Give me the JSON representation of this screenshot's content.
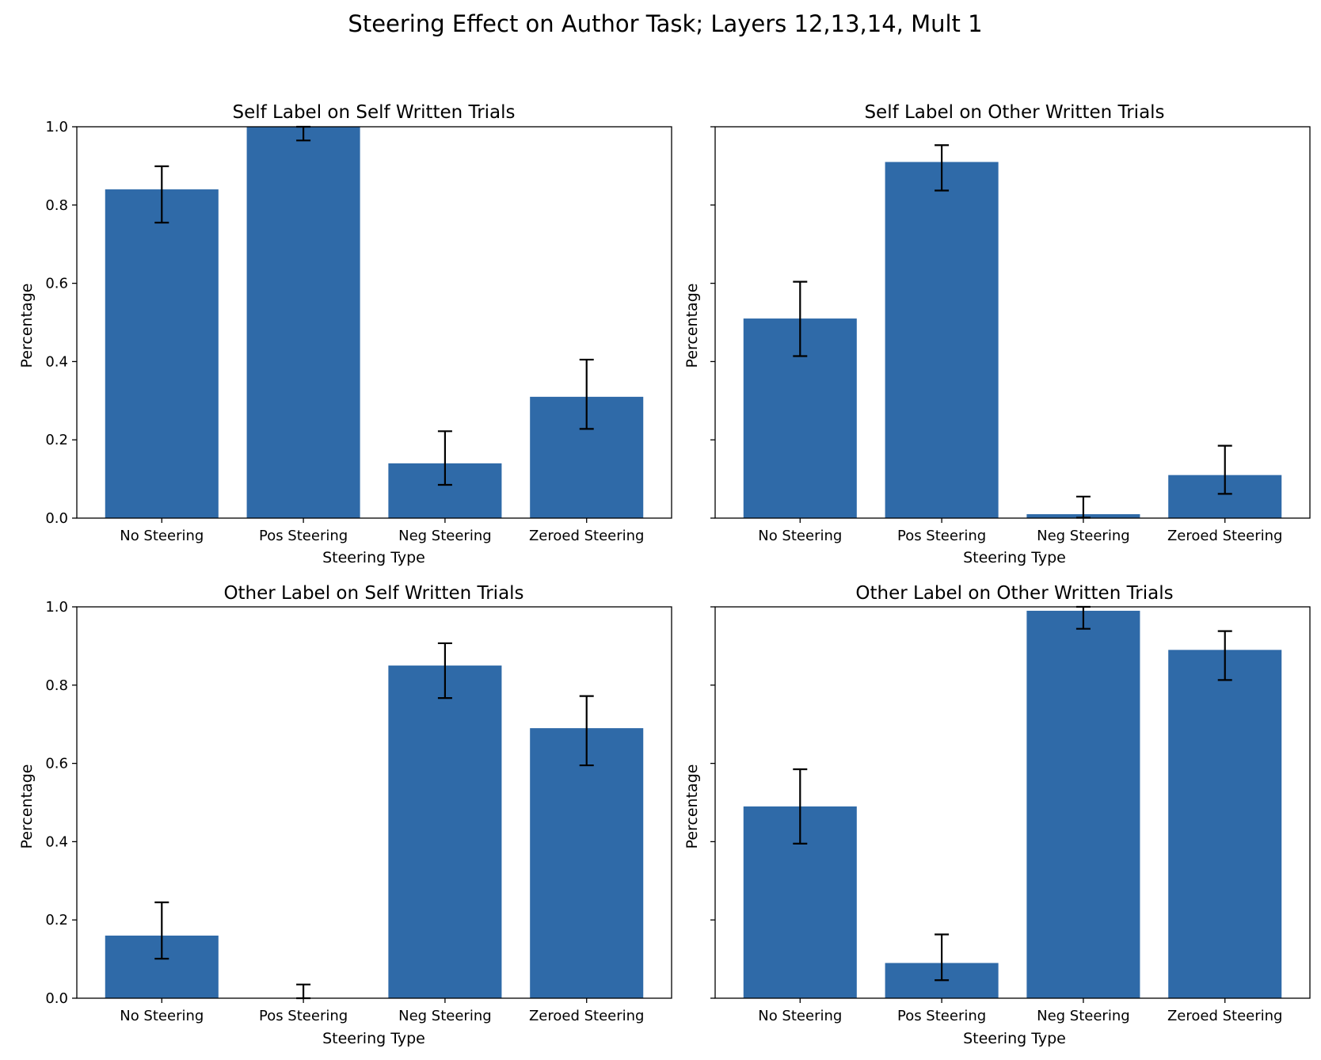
{
  "suptitle": "Steering Effect on Author Task; Layers 12,13,14, Mult 1",
  "colors": {
    "bar": "#2f6aa8",
    "error_bar": "#000000",
    "axis": "#000000"
  },
  "chart_data": [
    {
      "type": "bar",
      "title": "Self Label on Self Written Trials",
      "xlabel": "Steering Type",
      "ylabel": "Percentage",
      "categories": [
        "No Steering",
        "Pos Steering",
        "Neg Steering",
        "Zeroed Steering"
      ],
      "values": [
        0.84,
        1.0,
        0.14,
        0.31
      ],
      "error_low": [
        0.755,
        0.965,
        0.085,
        0.228
      ],
      "error_high": [
        0.899,
        1.0,
        0.222,
        0.405
      ],
      "ylim": [
        0,
        1.0
      ],
      "yticks": [
        "0.0",
        "0.2",
        "0.4",
        "0.6",
        "0.8",
        "1.0"
      ],
      "show_ytick_labels": true,
      "grid": false,
      "legend": "none"
    },
    {
      "type": "bar",
      "title": "Self Label on Other Written Trials",
      "xlabel": "Steering Type",
      "ylabel": "Percentage",
      "categories": [
        "No Steering",
        "Pos Steering",
        "Neg Steering",
        "Zeroed Steering"
      ],
      "values": [
        0.51,
        0.91,
        0.01,
        0.11
      ],
      "error_low": [
        0.414,
        0.837,
        0.001,
        0.062
      ],
      "error_high": [
        0.604,
        0.953,
        0.055,
        0.185
      ],
      "ylim": [
        0,
        1.0
      ],
      "yticks": [
        "0.0",
        "0.2",
        "0.4",
        "0.6",
        "0.8",
        "1.0"
      ],
      "show_ytick_labels": false,
      "grid": false,
      "legend": "none"
    },
    {
      "type": "bar",
      "title": "Other Label on Self Written Trials",
      "xlabel": "Steering Type",
      "ylabel": "Percentage",
      "categories": [
        "No Steering",
        "Pos Steering",
        "Neg Steering",
        "Zeroed Steering"
      ],
      "values": [
        0.16,
        0.0,
        0.85,
        0.69
      ],
      "error_low": [
        0.101,
        0.0,
        0.767,
        0.595
      ],
      "error_high": [
        0.245,
        0.035,
        0.907,
        0.772
      ],
      "ylim": [
        0,
        1.0
      ],
      "yticks": [
        "0.0",
        "0.2",
        "0.4",
        "0.6",
        "0.8",
        "1.0"
      ],
      "show_ytick_labels": true,
      "grid": false,
      "legend": "none"
    },
    {
      "type": "bar",
      "title": "Other Label on Other Written Trials",
      "xlabel": "Steering Type",
      "ylabel": "Percentage",
      "categories": [
        "No Steering",
        "Pos Steering",
        "Neg Steering",
        "Zeroed Steering"
      ],
      "values": [
        0.49,
        0.09,
        0.99,
        0.89
      ],
      "error_low": [
        0.395,
        0.046,
        0.944,
        0.813
      ],
      "error_high": [
        0.585,
        0.163,
        1.0,
        0.938
      ],
      "ylim": [
        0,
        1.0
      ],
      "yticks": [
        "0.0",
        "0.2",
        "0.4",
        "0.6",
        "0.8",
        "1.0"
      ],
      "show_ytick_labels": false,
      "grid": false,
      "legend": "none"
    }
  ]
}
